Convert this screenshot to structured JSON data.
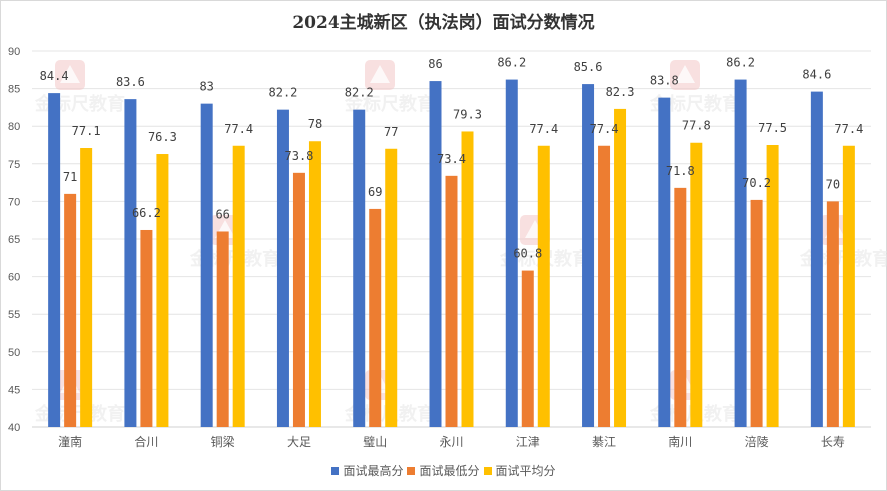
{
  "chart_data": {
    "type": "bar",
    "title": "2024主城新区（执法岗）面试分数情况",
    "xlabel": "",
    "ylabel": "",
    "ylim": [
      40,
      90
    ],
    "yticks": [
      "40",
      "45",
      "50",
      "55",
      "60",
      "65",
      "70",
      "75",
      "80",
      "85",
      "90"
    ],
    "ytick_values": [
      40,
      45,
      50,
      55,
      60,
      65,
      70,
      75,
      80,
      85,
      90
    ],
    "grid": true,
    "legend_position": "bottom",
    "categories": [
      "潼南",
      "合川",
      "铜梁",
      "大足",
      "璧山",
      "永川",
      "江津",
      "綦江",
      "南川",
      "涪陵",
      "长寿"
    ],
    "series": [
      {
        "name": "面试最高分",
        "color": "#4472c4",
        "values": [
          84.4,
          83.6,
          83,
          82.2,
          82.2,
          86,
          86.2,
          85.6,
          83.8,
          86.2,
          84.6
        ],
        "labels": [
          "84.4",
          "83.6",
          "83",
          "82.2",
          "82.2",
          "86",
          "86.2",
          "85.6",
          "83.8",
          "86.2",
          "84.6"
        ]
      },
      {
        "name": "面试最低分",
        "color": "#ed7d31",
        "values": [
          71,
          66.2,
          66,
          73.8,
          69,
          73.4,
          60.8,
          77.4,
          71.8,
          70.2,
          70
        ],
        "labels": [
          "71",
          "66.2",
          "66",
          "73.8",
          "69",
          "73.4",
          "60.8",
          "77.4",
          "71.8",
          "70.2",
          "70"
        ]
      },
      {
        "name": "面试平均分",
        "color": "#ffc000",
        "values": [
          77.1,
          76.3,
          77.4,
          78,
          77,
          79.3,
          77.4,
          82.3,
          77.8,
          77.5,
          77.4
        ],
        "labels": [
          "77.1",
          "76.3",
          "77.4",
          "78",
          "77",
          "79.3",
          "77.4",
          "82.3",
          "77.8",
          "77.5",
          "77.4"
        ]
      }
    ]
  },
  "watermark": {
    "text": "金标尺教育",
    "icon": "pyramid-logo-icon"
  }
}
